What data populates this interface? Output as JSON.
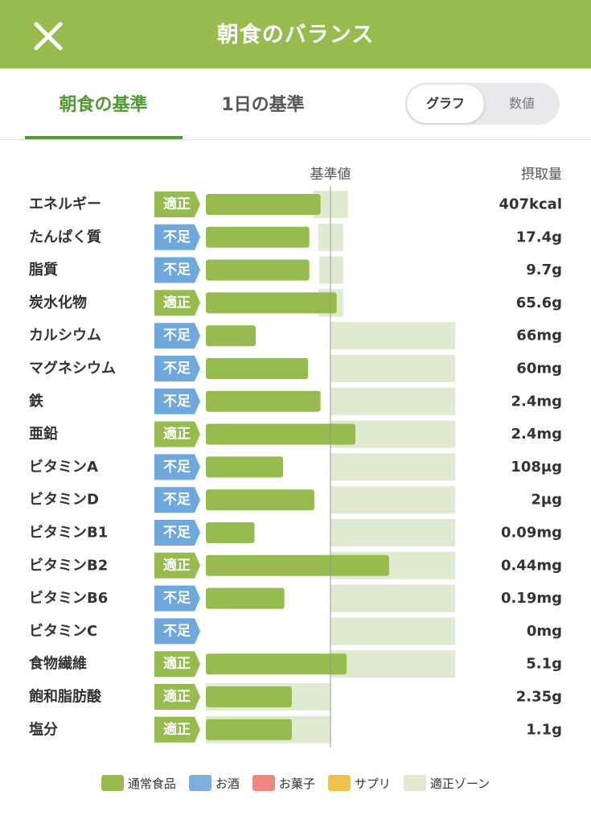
{
  "header": {
    "title": "朝食のバランス"
  },
  "tabs": [
    {
      "label": "朝食の基準",
      "active": true
    },
    {
      "label": "1日の基準",
      "active": false
    }
  ],
  "toggle": {
    "graph_label": "グラフ",
    "values_label": "数値",
    "selected": "グラフ"
  },
  "colors": {
    "header": "#97bb4f",
    "food_bar": "#97bb4f",
    "alcohol": "#7daedc",
    "snack": "#ee8682",
    "supplement": "#f1c14d",
    "zone": "#dfead0",
    "status_ok": "#97bb4f",
    "status_low": "#6fa8dc"
  },
  "chart_data": {
    "type": "bar",
    "orientation": "horizontal",
    "reference_label": "基準値",
    "intake_header": "摂取量",
    "reference_value_percent": 100,
    "rows": [
      {
        "name": "エネルギー",
        "status": "適正",
        "percent": 92,
        "zone": [
          86,
          114
        ],
        "intake": "407kcal"
      },
      {
        "name": "たんぱく質",
        "status": "不足",
        "percent": 83,
        "zone": [
          90,
          110
        ],
        "intake": "17.4g"
      },
      {
        "name": "脂質",
        "status": "不足",
        "percent": 83,
        "zone": [
          91,
          110
        ],
        "intake": "9.7g"
      },
      {
        "name": "炭水化物",
        "status": "適正",
        "percent": 105,
        "zone": [
          90,
          110
        ],
        "intake": "65.6g"
      },
      {
        "name": "カルシウム",
        "status": "不足",
        "percent": 40,
        "zone": [
          100,
          200
        ],
        "intake": "66mg"
      },
      {
        "name": "マグネシウム",
        "status": "不足",
        "percent": 82,
        "zone": [
          100,
          200
        ],
        "intake": "60mg"
      },
      {
        "name": "鉄",
        "status": "不足",
        "percent": 92,
        "zone": [
          100,
          200
        ],
        "intake": "2.4mg"
      },
      {
        "name": "亜鉛",
        "status": "適正",
        "percent": 120,
        "zone": [
          100,
          200
        ],
        "intake": "2.4mg"
      },
      {
        "name": "ビタミンA",
        "status": "不足",
        "percent": 62,
        "zone": [
          100,
          200
        ],
        "intake": "108μg"
      },
      {
        "name": "ビタミンD",
        "status": "不足",
        "percent": 87,
        "zone": [
          100,
          200
        ],
        "intake": "2μg"
      },
      {
        "name": "ビタミンB1",
        "status": "不足",
        "percent": 39,
        "zone": [
          100,
          200
        ],
        "intake": "0.09mg"
      },
      {
        "name": "ビタミンB2",
        "status": "適正",
        "percent": 147,
        "zone": [
          100,
          200
        ],
        "intake": "0.44mg"
      },
      {
        "name": "ビタミンB6",
        "status": "不足",
        "percent": 63,
        "zone": [
          100,
          200
        ],
        "intake": "0.19mg"
      },
      {
        "name": "ビタミンC",
        "status": "不足",
        "percent": 0,
        "zone": [
          100,
          200
        ],
        "intake": "0mg"
      },
      {
        "name": "食物繊維",
        "status": "適正",
        "percent": 113,
        "zone": [
          100,
          200
        ],
        "intake": "5.1g"
      },
      {
        "name": "飽和脂肪酸",
        "status": "適正",
        "percent": 69,
        "zone": [
          0,
          100
        ],
        "intake": "2.35g"
      },
      {
        "name": "塩分",
        "status": "適正",
        "percent": 69,
        "zone": [
          0,
          100
        ],
        "intake": "1.1g"
      }
    ]
  },
  "legend": [
    {
      "label": "通常食品",
      "color": "#97bb4f"
    },
    {
      "label": "お酒",
      "color": "#7daedc"
    },
    {
      "label": "お菓子",
      "color": "#ee8682"
    },
    {
      "label": "サプリ",
      "color": "#f1c14d"
    },
    {
      "label": "適正ゾーン",
      "color": "#dfead0"
    }
  ]
}
